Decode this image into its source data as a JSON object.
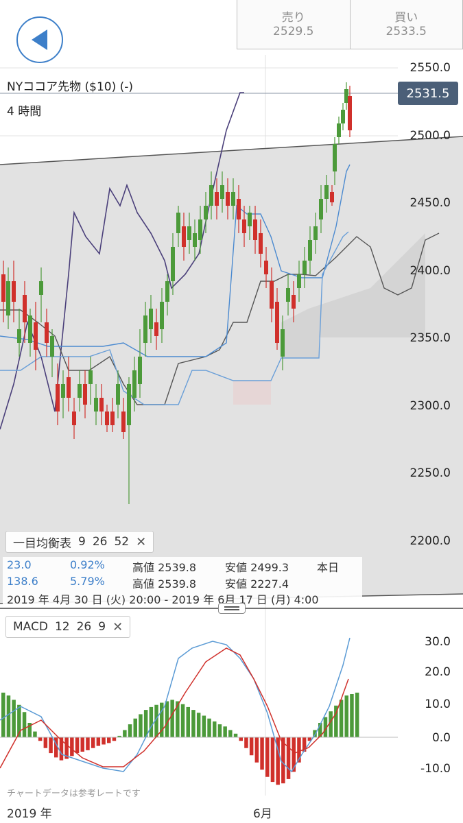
{
  "header": {
    "back_icon": "back-arrow-icon",
    "sell_label": "売り",
    "sell_price": "2529.5",
    "buy_label": "買い",
    "buy_price": "2533.5"
  },
  "instrument": {
    "name": "NYココア先物 ($10) (-)",
    "timeframe": "4 時間",
    "current_price": "2531.5"
  },
  "price_axis": [
    "2550.0",
    "2500.0",
    "2450.0",
    "2400.0",
    "2350.0",
    "2300.0",
    "2250.0",
    "2200.0"
  ],
  "ichimoku": {
    "label": "一目均衡表",
    "p1": "9",
    "p2": "26",
    "p3": "52",
    "close": "✕"
  },
  "stats": {
    "change": "23.0",
    "change_pct": "0.92%",
    "high_label_1": "高値 2539.8",
    "low_label_1": "安値 2499.3",
    "period_1": "本日",
    "change_2": "138.6",
    "change_pct_2": "5.79%",
    "high_label_2": "高値 2539.8",
    "low_label_2": "安値 2227.4",
    "range": "2019 年 4月 30 日 (火) 20:00 - 2019 年 6月 17 日 (月) 4:00"
  },
  "macd": {
    "label": "MACD",
    "p1": "12",
    "p2": "26",
    "p3": "9",
    "close": "✕",
    "axis": [
      "30.0",
      "20.0",
      "10.0",
      "0.0",
      "-10.0"
    ]
  },
  "footer": {
    "note": "チャートデータは参考レートです",
    "year": "2019 年",
    "month": "6月"
  },
  "colors": {
    "up": "#4c9a3a",
    "down": "#d0302b",
    "accent": "#3d7fc9",
    "price_tag": "#4b5f78"
  }
}
